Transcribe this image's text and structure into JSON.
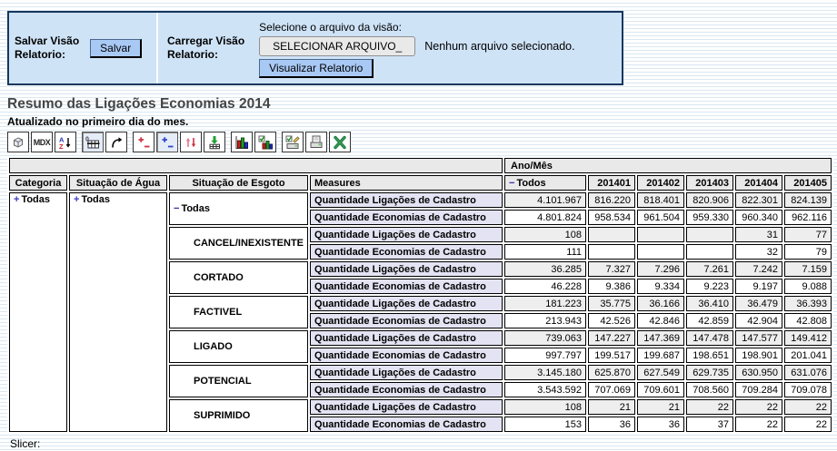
{
  "panel": {
    "save_label": "Salvar Visão\nRelatorio:",
    "save_button": "Salvar",
    "load_label": "Carregar Visão\nRelatorio:",
    "file_prompt": "Selecione o arquivo da visão:",
    "file_button": "SELECIONAR ARQUIVO_",
    "file_status": "Nenhum arquivo selecionado.",
    "view_button": "Visualizar Relatorio"
  },
  "page": {
    "title": "Resumo das Ligações Economias 2014",
    "subtitle": "Atualizado no primeiro dia do mes.",
    "slicer_label": "Slicer:"
  },
  "toolbar": {
    "mdx_label": "MDX",
    "icons": [
      {
        "name": "olap-navigator-cube",
        "pressed": false
      },
      {
        "name": "mdx-editor",
        "pressed": false
      },
      {
        "name": "sort-az",
        "pressed": false
      },
      {
        "name": "suppress-empty-cells",
        "pressed": true
      },
      {
        "name": "swap-axes",
        "pressed": false
      },
      {
        "name": "drill-member",
        "pressed": false
      },
      {
        "name": "drill-position",
        "pressed": true
      },
      {
        "name": "drill-replace",
        "pressed": false
      },
      {
        "name": "drill-through",
        "pressed": false
      },
      {
        "name": "show-chart",
        "pressed": false
      },
      {
        "name": "chart-config",
        "pressed": false
      },
      {
        "name": "print-config",
        "pressed": false
      },
      {
        "name": "print-pdf",
        "pressed": false
      },
      {
        "name": "export-excel",
        "pressed": false
      }
    ]
  },
  "colors": {
    "panel_bg": "#cfe3f7",
    "panel_border": "#17365d",
    "button_blue": "#a9c9f5",
    "header_bg": "#e9e9e9",
    "measure_bg": "#e3e3f3",
    "row_alt": "#eeeeee",
    "drill_icon_blue": "#3b3bc4",
    "stripe_blue": "#d9e7f2"
  },
  "pivot": {
    "column_axis_label": "Ano/Mês",
    "row_headers": [
      "Categoria",
      "Situação de Água",
      "Situação de Esgoto",
      "Measures"
    ],
    "columns": [
      {
        "label": "Todos",
        "icon": "minus"
      },
      {
        "label": "201401"
      },
      {
        "label": "201402"
      },
      {
        "label": "201403"
      },
      {
        "label": "201404"
      },
      {
        "label": "201405"
      }
    ],
    "categoria": {
      "label": "Todas",
      "icon": "plus"
    },
    "agua": {
      "label": "Todas",
      "icon": "plus"
    },
    "measures": [
      "Quantidade Ligações de Cadastro",
      "Quantidade Economias de Cadastro"
    ],
    "groups": [
      {
        "esgoto": "Todas",
        "icon": "minus",
        "indent": false,
        "rows": [
          [
            "4.101.967",
            "816.220",
            "818.401",
            "820.906",
            "822.301",
            "824.139"
          ],
          [
            "4.801.824",
            "958.534",
            "961.504",
            "959.330",
            "960.340",
            "962.116"
          ]
        ]
      },
      {
        "esgoto": "CANCEL/INEXISTENTE",
        "icon": null,
        "indent": true,
        "rows": [
          [
            "108",
            "",
            "",
            "",
            "31",
            "77"
          ],
          [
            "111",
            "",
            "",
            "",
            "32",
            "79"
          ]
        ]
      },
      {
        "esgoto": "CORTADO",
        "icon": null,
        "indent": true,
        "rows": [
          [
            "36.285",
            "7.327",
            "7.296",
            "7.261",
            "7.242",
            "7.159"
          ],
          [
            "46.228",
            "9.386",
            "9.334",
            "9.223",
            "9.197",
            "9.088"
          ]
        ]
      },
      {
        "esgoto": "FACTIVEL",
        "icon": null,
        "indent": true,
        "rows": [
          [
            "181.223",
            "35.775",
            "36.166",
            "36.410",
            "36.479",
            "36.393"
          ],
          [
            "213.943",
            "42.526",
            "42.846",
            "42.859",
            "42.904",
            "42.808"
          ]
        ]
      },
      {
        "esgoto": "LIGADO",
        "icon": null,
        "indent": true,
        "rows": [
          [
            "739.063",
            "147.227",
            "147.369",
            "147.478",
            "147.577",
            "149.412"
          ],
          [
            "997.797",
            "199.517",
            "199.687",
            "198.651",
            "198.901",
            "201.041"
          ]
        ]
      },
      {
        "esgoto": "POTENCIAL",
        "icon": null,
        "indent": true,
        "rows": [
          [
            "3.145.180",
            "625.870",
            "627.549",
            "629.735",
            "630.950",
            "631.076"
          ],
          [
            "3.543.592",
            "707.069",
            "709.601",
            "708.560",
            "709.284",
            "709.078"
          ]
        ]
      },
      {
        "esgoto": "SUPRIMIDO",
        "icon": null,
        "indent": true,
        "rows": [
          [
            "108",
            "21",
            "21",
            "22",
            "22",
            "22"
          ],
          [
            "153",
            "36",
            "36",
            "37",
            "22",
            "22"
          ]
        ]
      }
    ]
  }
}
